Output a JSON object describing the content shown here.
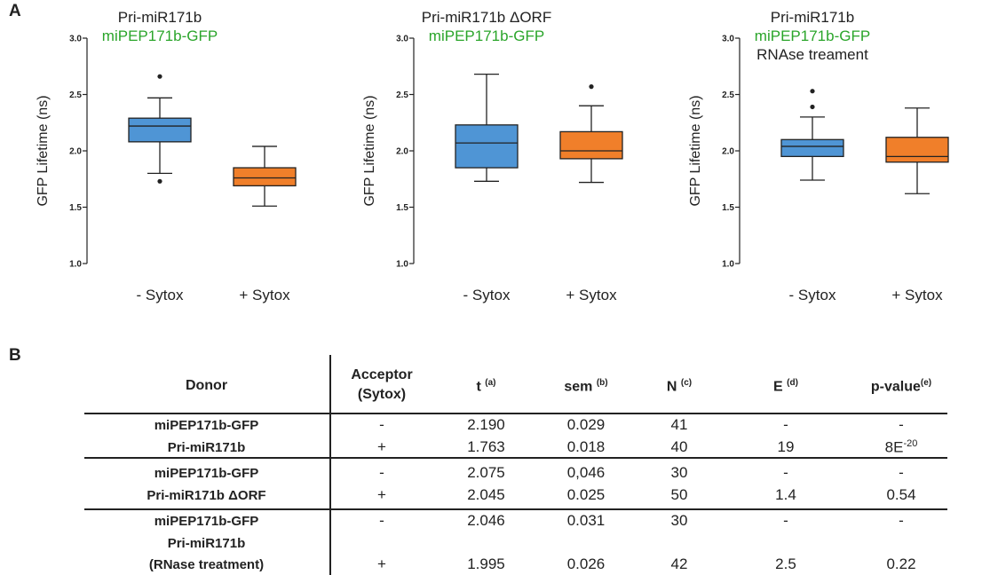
{
  "panel_a_label": "A",
  "panel_b_label": "B",
  "colors": {
    "minus": "#4f95d5",
    "plus": "#f07f2a",
    "green": "#2aa52a"
  },
  "chart_data": [
    {
      "type": "box",
      "title_lines": [
        {
          "text": "Pri-miR171b",
          "color": "#222222"
        },
        {
          "text": "miPEP171b-GFP",
          "color": "#2aa52a"
        }
      ],
      "ylabel": "GFP Lifetime (ns)",
      "ylim": [
        1.0,
        3.0
      ],
      "yticks": [
        "1.0",
        "1.5",
        "2.0",
        "2.5",
        "3.0"
      ],
      "categories": [
        "- Sytox",
        "+ Sytox"
      ],
      "boxes": [
        {
          "name": "- Sytox",
          "min": 1.8,
          "q1": 2.08,
          "median": 2.22,
          "q3": 2.29,
          "max": 2.47,
          "outliers": [
            2.66,
            1.73
          ]
        },
        {
          "name": "+ Sytox",
          "min": 1.51,
          "q1": 1.69,
          "median": 1.76,
          "q3": 1.85,
          "max": 2.04,
          "outliers": []
        }
      ]
    },
    {
      "type": "box",
      "title_lines": [
        {
          "text": "Pri-miR171b ΔORF",
          "color": "#222222"
        },
        {
          "text": "miPEP171b-GFP",
          "color": "#2aa52a"
        }
      ],
      "ylabel": "GFP Lifetime (ns)",
      "ylim": [
        1.0,
        3.0
      ],
      "yticks": [
        "1.0",
        "1.5",
        "2.0",
        "2.5",
        "3.0"
      ],
      "categories": [
        "- Sytox",
        "+ Sytox"
      ],
      "boxes": [
        {
          "name": "- Sytox",
          "min": 1.73,
          "q1": 1.85,
          "median": 2.07,
          "q3": 2.23,
          "max": 2.68,
          "outliers": []
        },
        {
          "name": "+ Sytox",
          "min": 1.72,
          "q1": 1.93,
          "median": 2.0,
          "q3": 2.17,
          "max": 2.4,
          "outliers": [
            2.57
          ]
        }
      ]
    },
    {
      "type": "box",
      "title_lines": [
        {
          "text": "Pri-miR171b",
          "color": "#222222"
        },
        {
          "text": "miPEP171b-GFP",
          "color": "#2aa52a"
        },
        {
          "text": "RNAse treament",
          "color": "#222222"
        }
      ],
      "ylabel": "GFP Lifetime (ns)",
      "ylim": [
        1.0,
        3.0
      ],
      "yticks": [
        "1.0",
        "1.5",
        "2.0",
        "2.5",
        "3.0"
      ],
      "categories": [
        "- Sytox",
        "+ Sytox"
      ],
      "boxes": [
        {
          "name": "- Sytox",
          "min": 1.74,
          "q1": 1.95,
          "median": 2.04,
          "q3": 2.1,
          "max": 2.3,
          "outliers": [
            2.53,
            2.39
          ]
        },
        {
          "name": "+ Sytox",
          "min": 1.62,
          "q1": 1.9,
          "median": 1.95,
          "q3": 2.12,
          "max": 2.38,
          "outliers": []
        }
      ]
    }
  ],
  "table": {
    "headers": {
      "donor": "Donor",
      "acceptor_line1": "Acceptor",
      "acceptor_line2": "(Sytox)",
      "t": "t",
      "t_sup": "(a)",
      "sem": "sem",
      "sem_sup": "(b)",
      "n": "N",
      "n_sup": "(c)",
      "e": "E",
      "e_sup": "(d)",
      "p": "p-value",
      "p_sup": "(e)"
    },
    "donor_groups": [
      [
        "miPEP171b-GFP",
        "Pri-miR171b"
      ],
      [
        "miPEP171b-GFP",
        "Pri-miR171b ΔORF"
      ],
      [
        "miPEP171b-GFP",
        "Pri-miR171b",
        "(RNase treatment)"
      ]
    ],
    "rows": [
      {
        "acceptor": "-",
        "t": "2.190",
        "sem": "0.029",
        "n": "41",
        "e": "-",
        "p": "-",
        "p_sup": ""
      },
      {
        "acceptor": "+",
        "t": "1.763",
        "sem": "0.018",
        "n": "40",
        "e": "19",
        "p": "8E",
        "p_sup": "-20"
      },
      {
        "acceptor": "-",
        "t": "2.075",
        "sem": "0,046",
        "n": "30",
        "e": "-",
        "p": "-",
        "p_sup": ""
      },
      {
        "acceptor": "+",
        "t": "2.045",
        "sem": "0.025",
        "n": "50",
        "e": "1.4",
        "p": "0.54",
        "p_sup": ""
      },
      {
        "acceptor": "-",
        "t": "2.046",
        "sem": "0.031",
        "n": "30",
        "e": "-",
        "p": "-",
        "p_sup": ""
      },
      {
        "acceptor": "+",
        "t": "1.995",
        "sem": "0.026",
        "n": "42",
        "e": "2.5",
        "p": "0.22",
        "p_sup": ""
      }
    ]
  }
}
